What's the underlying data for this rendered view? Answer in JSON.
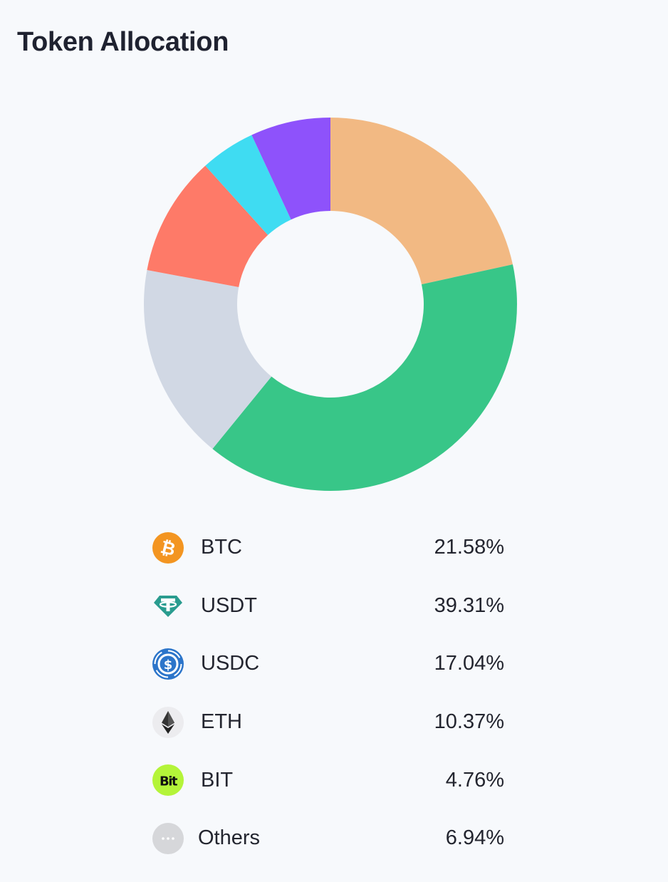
{
  "header": {
    "title": "Token Allocation"
  },
  "chart_data": {
    "type": "pie",
    "donut": true,
    "title": "Token Allocation",
    "categories": [
      "BTC",
      "USDT",
      "USDC",
      "ETH",
      "BIT",
      "Others"
    ],
    "values": [
      21.58,
      39.31,
      17.04,
      10.37,
      4.76,
      6.94
    ],
    "value_labels": [
      "21.58%",
      "39.31%",
      "17.04%",
      "10.37%",
      "4.76%",
      "6.94%"
    ],
    "unit": "%",
    "colors": [
      "#f2b983",
      "#38c688",
      "#d1d8e4",
      "#fe7a68",
      "#3fdcf2",
      "#8e52fb"
    ],
    "start_angle": "12 o'clock",
    "direction": "clockwise",
    "legend_placement": "bottom"
  },
  "legend": {
    "items": [
      {
        "label": "BTC",
        "value": "21.58%",
        "icon": "btc-icon",
        "icon_color": "#f39521"
      },
      {
        "label": "USDT",
        "value": "39.31%",
        "icon": "usdt-icon",
        "icon_color": "#2a9c8f"
      },
      {
        "label": "USDC",
        "value": "17.04%",
        "icon": "usdc-icon",
        "icon_color": "#2c75ca"
      },
      {
        "label": "ETH",
        "value": "10.37%",
        "icon": "eth-icon",
        "icon_color": "#343434"
      },
      {
        "label": "BIT",
        "value": "4.76%",
        "icon": "bit-icon",
        "icon_color": "#b4f439"
      },
      {
        "label": "Others",
        "value": "6.94%",
        "icon": "more-dots-icon",
        "icon_color": "#d6d7da"
      }
    ]
  }
}
